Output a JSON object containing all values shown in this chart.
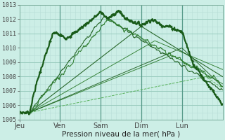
{
  "xlabel": "Pression niveau de la mer( hPa )",
  "bg_color": "#cceee6",
  "grid_minor_color": "#b8ddd6",
  "grid_major_color": "#99ccbf",
  "day_sep_color": "#559988",
  "line_dark": "#1a5c1a",
  "line_med": "#2a7a2a",
  "line_light": "#4aaa4a",
  "ylim": [
    1005,
    1013
  ],
  "yticks": [
    1005,
    1006,
    1007,
    1008,
    1009,
    1010,
    1011,
    1012,
    1013
  ],
  "day_labels": [
    "Jeu",
    "Ven",
    "Sam",
    "Dim",
    "Lun"
  ],
  "day_positions": [
    0,
    24,
    48,
    72,
    96
  ],
  "total_hours": 120,
  "xlabel_fontsize": 7.5,
  "tick_fontsize": 6
}
